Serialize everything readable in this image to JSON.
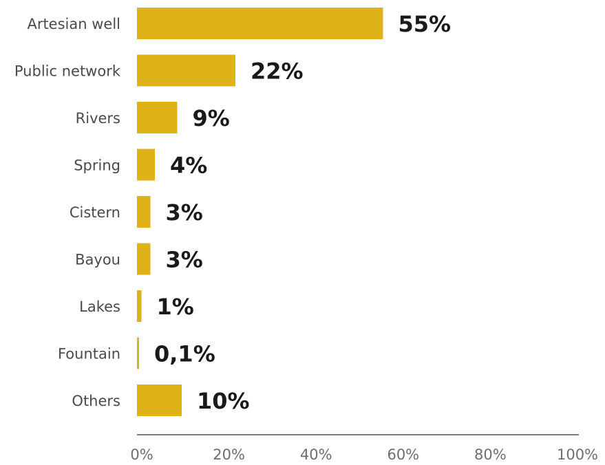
{
  "chart_data": {
    "type": "bar",
    "orientation": "horizontal",
    "categories": [
      "Artesian well",
      "Public network",
      "Rivers",
      "Spring",
      "Cistern",
      "Bayou",
      "Lakes",
      "Fountain",
      "Others"
    ],
    "values": [
      55,
      22,
      9,
      4,
      3,
      3,
      1,
      0.1,
      10
    ],
    "value_labels": [
      "55%",
      "22%",
      "9%",
      "4%",
      "3%",
      "3%",
      "1%",
      "0,1%",
      "10%"
    ],
    "x_ticks": [
      "0%",
      "20%",
      "40%",
      "60%",
      "80%",
      "100%"
    ],
    "xlim": [
      0,
      100
    ],
    "grid": false,
    "colors": {
      "bar": "#dfb219",
      "axis": "#7a7a7a",
      "category_text": "#4a4a4a",
      "value_text": "#1a1a1a",
      "tick_text": "#6e6e6e"
    }
  }
}
